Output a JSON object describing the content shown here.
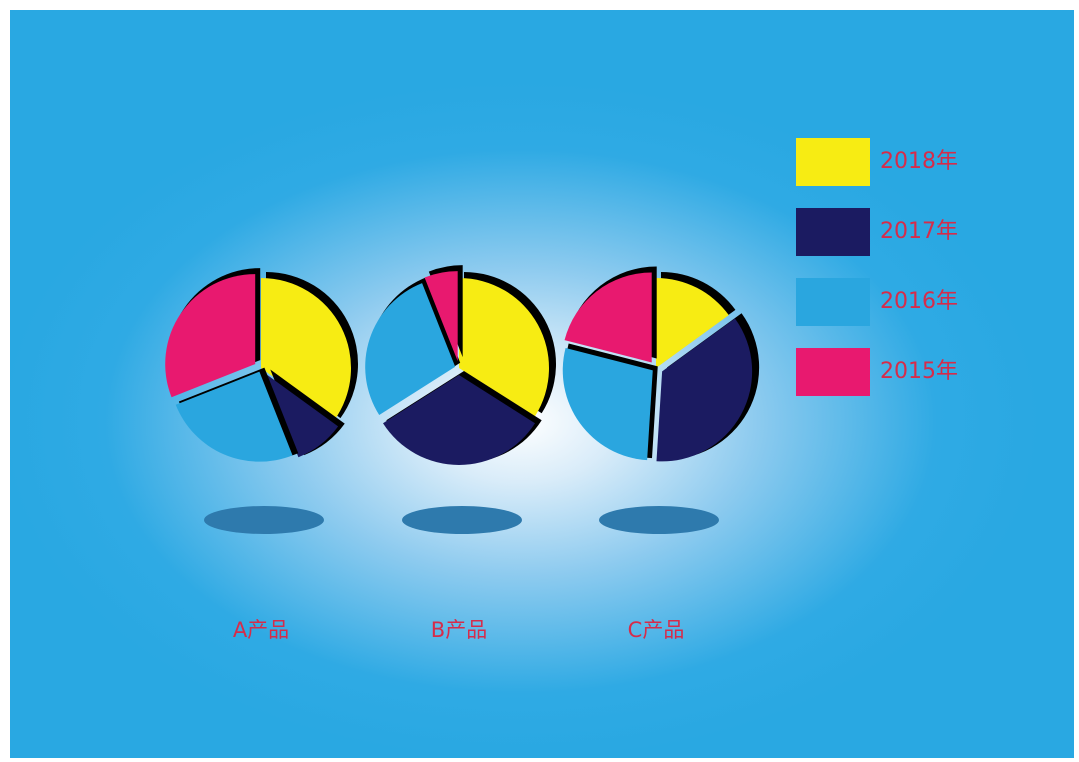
{
  "chart_data": {
    "type": "pie",
    "categories": [
      "A产品",
      "B产品",
      "C产品"
    ],
    "legend": [
      "2018年",
      "2017年",
      "2016年",
      "2015年"
    ],
    "series_colors": {
      "2018年": "#f7ec13",
      "2017年": "#1b1b61",
      "2016年": "#2aa6df",
      "2015年": "#e8196f"
    },
    "pies": [
      {
        "category": "A产品",
        "values": {
          "2018年": 35,
          "2017年": 9,
          "2016年": 25,
          "2015年": 31
        }
      },
      {
        "category": "B产品",
        "values": {
          "2018年": 34,
          "2017年": 32,
          "2016年": 28,
          "2015年": 6
        }
      },
      {
        "category": "C产品",
        "values": {
          "2018年": 15,
          "2017年": 36,
          "2016年": 28,
          "2015年": 21
        }
      }
    ],
    "legend_position": "right",
    "colors": {
      "background": "#29a8e2",
      "label_text": "#d62c4a",
      "shadow": "#2e7aad"
    }
  }
}
